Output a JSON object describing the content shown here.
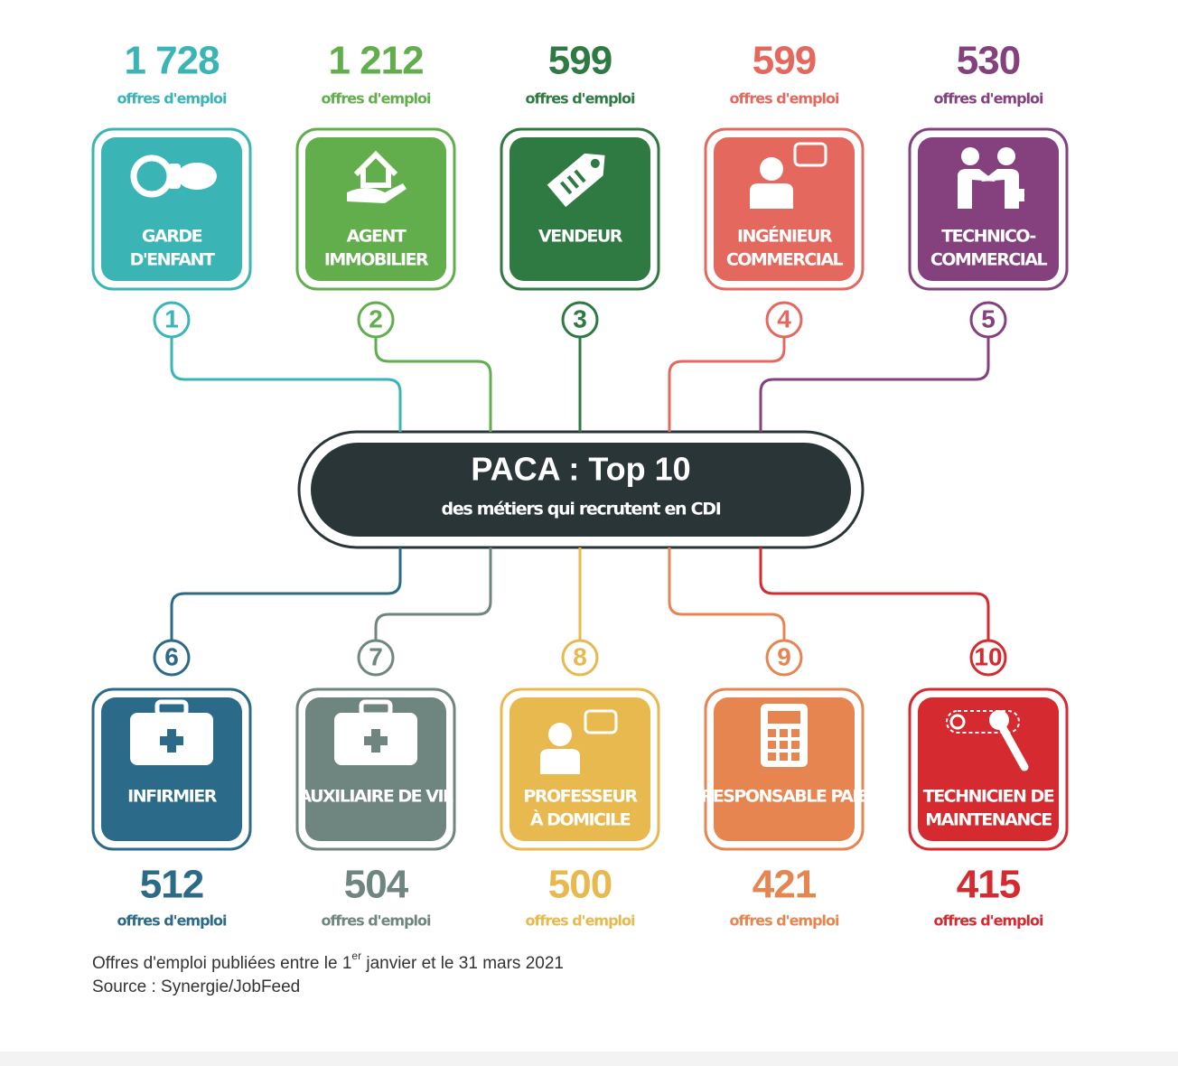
{
  "header": {
    "title": "PACA : Top 10",
    "subtitle": "des métiers qui recrutent en CDI"
  },
  "items": [
    {
      "rank": "1",
      "count": "1 728",
      "unit": "offres d'emploi",
      "label": [
        "GARDE",
        "D'ENFANT"
      ],
      "color": "#3bb4b6"
    },
    {
      "rank": "2",
      "count": "1 212",
      "unit": "offres d'emploi",
      "label": [
        "AGENT",
        "IMMOBILIER"
      ],
      "color": "#62ae4d"
    },
    {
      "rank": "3",
      "count": "599",
      "unit": "offres d'emploi",
      "label": [
        "VENDEUR"
      ],
      "color": "#2f7a42"
    },
    {
      "rank": "4",
      "count": "599",
      "unit": "offres d'emploi",
      "label": [
        "INGÉNIEUR",
        "COMMERCIAL"
      ],
      "color": "#e5685f"
    },
    {
      "rank": "5",
      "count": "530",
      "unit": "offres d'emploi",
      "label": [
        "TECHNICO-",
        "COMMERCIAL"
      ],
      "color": "#85417e"
    },
    {
      "rank": "6",
      "count": "512",
      "unit": "offres d'emploi",
      "label": [
        "INFIRMIER"
      ],
      "color": "#2c6a89"
    },
    {
      "rank": "7",
      "count": "504",
      "unit": "offres d'emploi",
      "label": [
        "AUXILIAIRE DE VIE"
      ],
      "color": "#6f8580"
    },
    {
      "rank": "8",
      "count": "500",
      "unit": "offres d'emploi",
      "label": [
        "PROFESSEUR",
        "À DOMICILE"
      ],
      "color": "#e8b94f"
    },
    {
      "rank": "9",
      "count": "421",
      "unit": "offres d'emploi",
      "label": [
        "RESPONSABLE PAIE"
      ],
      "color": "#e78551"
    },
    {
      "rank": "10",
      "count": "415",
      "unit": "offres d'emploi",
      "label": [
        "TECHNICIEN DE",
        "MAINTENANCE"
      ],
      "color": "#d52a30"
    }
  ],
  "footnote": {
    "line1": [
      "Offres d'emploi publiées entre le 1",
      "er",
      " janvier et le 31 mars 2021"
    ],
    "line2": "Source : Synergie/JobFeed"
  }
}
